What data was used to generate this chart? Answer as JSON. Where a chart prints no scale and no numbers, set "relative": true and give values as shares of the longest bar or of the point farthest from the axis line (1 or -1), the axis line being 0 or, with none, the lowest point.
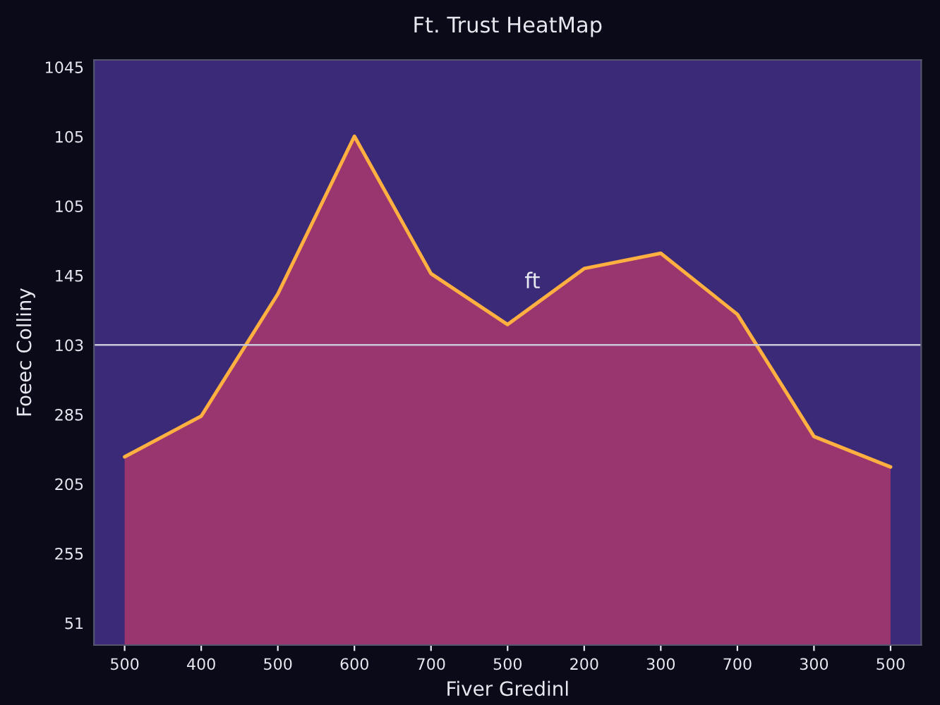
{
  "chart_data": {
    "type": "area",
    "title": "Ft. Trust HeatMap",
    "xlabel": "Fiver Gredinl",
    "ylabel": "Foeec Colliny",
    "categories": [
      "500",
      "400",
      "500",
      "600",
      "700",
      "500",
      "200",
      "300",
      "700",
      "300",
      "500"
    ],
    "relative": true,
    "series": [
      {
        "color": "#e8406a",
        "values": [
          0.37,
          0.45,
          0.69,
          1,
          0.73,
          0.63,
          0.74,
          0.77,
          0.65,
          0.41,
          0.35
        ]
      }
    ],
    "ref_lines": [
      {
        "axis": "y",
        "value": 0.59,
        "color": "#c8c8d8"
      }
    ],
    "annotations": [
      "ft",
      "1045",
      "105",
      "105",
      "145",
      "103",
      "285",
      "205",
      "255",
      "51"
    ],
    "grid": false
  }
}
